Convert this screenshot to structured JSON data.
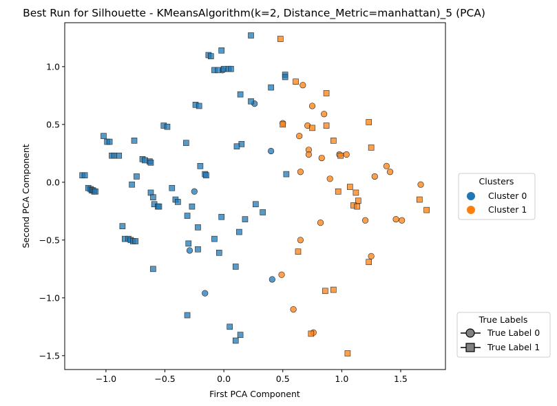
{
  "chart_data": {
    "type": "scatter",
    "title": "Best Run for Silhouette - KMeansAlgorithm(k=2, Distance_Metric=manhattan)_5 (PCA)",
    "xlabel": "First PCA Component",
    "ylabel": "Second PCA Component",
    "xlim": [
      -1.35,
      1.88
    ],
    "ylim": [
      -1.62,
      1.38
    ],
    "xticks": [
      -1.0,
      -0.5,
      0.0,
      0.5,
      1.0,
      1.5
    ],
    "xtick_labels": [
      "−1.0",
      "−0.5",
      "0.0",
      "0.5",
      "1.0",
      "1.5"
    ],
    "yticks": [
      -1.5,
      -1.0,
      -0.5,
      0.0,
      0.5,
      1.0
    ],
    "ytick_labels": [
      "−1.5",
      "−1.0",
      "−0.5",
      "0.0",
      "0.5",
      "1.0"
    ],
    "grid": false,
    "cluster_colors": [
      "#1f77b4",
      "#ff7f0e"
    ],
    "series": [
      {
        "name": "Cluster 0 / True Label 0",
        "cluster": 0,
        "true_label": 0,
        "marker": "circle",
        "points": [
          [
            -0.01,
            0.97
          ],
          [
            0.26,
            0.68
          ],
          [
            0.4,
            0.27
          ],
          [
            -0.25,
            -0.08
          ],
          [
            -0.29,
            -0.59
          ],
          [
            -0.16,
            -0.96
          ],
          [
            0.41,
            -0.84
          ]
        ]
      },
      {
        "name": "Cluster 0 / True Label 1",
        "cluster": 0,
        "true_label": 1,
        "marker": "square",
        "points": [
          [
            0.23,
            1.27
          ],
          [
            -0.02,
            1.14
          ],
          [
            -0.13,
            1.1
          ],
          [
            -0.11,
            1.09
          ],
          [
            -0.08,
            0.97
          ],
          [
            -0.05,
            0.97
          ],
          [
            0.0,
            0.98
          ],
          [
            0.04,
            0.98
          ],
          [
            0.06,
            0.98
          ],
          [
            0.52,
            0.93
          ],
          [
            0.52,
            0.91
          ],
          [
            0.4,
            0.82
          ],
          [
            0.14,
            0.76
          ],
          [
            0.23,
            0.7
          ],
          [
            -0.24,
            0.67
          ],
          [
            -0.21,
            0.66
          ],
          [
            -0.51,
            0.49
          ],
          [
            -0.48,
            0.48
          ],
          [
            -1.02,
            0.4
          ],
          [
            -0.99,
            0.35
          ],
          [
            -0.97,
            0.35
          ],
          [
            -0.76,
            0.36
          ],
          [
            -0.32,
            0.34
          ],
          [
            0.15,
            0.33
          ],
          [
            0.11,
            0.31
          ],
          [
            -0.95,
            0.23
          ],
          [
            -0.93,
            0.23
          ],
          [
            -0.89,
            0.23
          ],
          [
            -0.69,
            0.2
          ],
          [
            -0.67,
            0.19
          ],
          [
            -0.63,
            0.18
          ],
          [
            -0.62,
            0.17
          ],
          [
            -0.2,
            0.14
          ],
          [
            -0.16,
            0.07
          ],
          [
            -0.15,
            0.06
          ],
          [
            -1.2,
            0.06
          ],
          [
            -1.18,
            0.06
          ],
          [
            -0.74,
            0.05
          ],
          [
            0.53,
            0.07
          ],
          [
            -0.78,
            -0.02
          ],
          [
            -1.15,
            -0.05
          ],
          [
            -1.13,
            -0.06
          ],
          [
            -1.12,
            -0.07
          ],
          [
            -1.11,
            -0.07
          ],
          [
            -1.1,
            -0.08
          ],
          [
            -1.09,
            -0.08
          ],
          [
            -0.44,
            -0.05
          ],
          [
            -0.62,
            -0.09
          ],
          [
            -0.6,
            -0.13
          ],
          [
            -0.41,
            -0.15
          ],
          [
            -0.39,
            -0.17
          ],
          [
            -0.59,
            -0.19
          ],
          [
            -0.56,
            -0.21
          ],
          [
            -0.55,
            -0.21
          ],
          [
            -0.27,
            -0.21
          ],
          [
            0.27,
            -0.19
          ],
          [
            0.33,
            -0.26
          ],
          [
            -0.31,
            -0.29
          ],
          [
            -0.02,
            -0.3
          ],
          [
            0.18,
            -0.32
          ],
          [
            -0.86,
            -0.38
          ],
          [
            -0.22,
            -0.39
          ],
          [
            0.13,
            -0.43
          ],
          [
            -0.84,
            -0.49
          ],
          [
            -0.81,
            -0.49
          ],
          [
            -0.79,
            -0.5
          ],
          [
            -0.77,
            -0.51
          ],
          [
            -0.75,
            -0.51
          ],
          [
            -0.08,
            -0.49
          ],
          [
            -0.3,
            -0.53
          ],
          [
            -0.22,
            -0.58
          ],
          [
            -0.04,
            -0.61
          ],
          [
            -0.6,
            -0.75
          ],
          [
            0.1,
            -0.73
          ],
          [
            -0.31,
            -1.15
          ],
          [
            0.05,
            -1.25
          ],
          [
            0.14,
            -1.32
          ],
          [
            0.1,
            -1.37
          ]
        ]
      },
      {
        "name": "Cluster 1 / True Label 0",
        "cluster": 1,
        "true_label": 0,
        "marker": "circle",
        "points": [
          [
            0.67,
            0.84
          ],
          [
            0.75,
            0.66
          ],
          [
            0.85,
            0.59
          ],
          [
            0.5,
            0.51
          ],
          [
            0.71,
            0.49
          ],
          [
            0.64,
            0.4
          ],
          [
            0.72,
            0.28
          ],
          [
            0.72,
            0.24
          ],
          [
            0.83,
            0.21
          ],
          [
            0.98,
            0.24
          ],
          [
            1.04,
            0.24
          ],
          [
            1.38,
            0.14
          ],
          [
            1.41,
            0.09
          ],
          [
            1.28,
            0.05
          ],
          [
            0.65,
            0.09
          ],
          [
            0.9,
            0.03
          ],
          [
            1.67,
            -0.02
          ],
          [
            1.2,
            -0.33
          ],
          [
            0.82,
            -0.35
          ],
          [
            1.46,
            -0.32
          ],
          [
            1.51,
            -0.33
          ],
          [
            0.65,
            -0.5
          ],
          [
            1.25,
            -0.64
          ],
          [
            0.49,
            -0.8
          ],
          [
            0.59,
            -1.1
          ],
          [
            0.76,
            -1.3
          ]
        ]
      },
      {
        "name": "Cluster 1 / True Label 1",
        "cluster": 1,
        "true_label": 1,
        "marker": "square",
        "points": [
          [
            0.48,
            1.24
          ],
          [
            0.61,
            0.87
          ],
          [
            0.87,
            0.77
          ],
          [
            1.23,
            0.52
          ],
          [
            0.5,
            0.5
          ],
          [
            0.75,
            0.47
          ],
          [
            0.87,
            0.49
          ],
          [
            0.93,
            0.36
          ],
          [
            1.25,
            0.3
          ],
          [
            0.99,
            0.23
          ],
          [
            1.07,
            -0.04
          ],
          [
            1.66,
            -0.15
          ],
          [
            1.72,
            -0.24
          ],
          [
            0.97,
            -0.08
          ],
          [
            1.12,
            -0.09
          ],
          [
            1.14,
            -0.16
          ],
          [
            1.1,
            -0.2
          ],
          [
            1.13,
            -0.21
          ],
          [
            0.63,
            -0.6
          ],
          [
            1.23,
            -0.69
          ],
          [
            0.86,
            -0.94
          ],
          [
            0.93,
            -0.93
          ],
          [
            0.74,
            -1.31
          ],
          [
            1.05,
            -1.48
          ]
        ]
      }
    ],
    "legends": [
      {
        "title": "Clusters",
        "position": "center-right",
        "entries": [
          {
            "label": "Cluster 0",
            "marker": "circle",
            "color": "#1f77b4"
          },
          {
            "label": "Cluster 1",
            "marker": "circle",
            "color": "#ff7f0e"
          }
        ]
      },
      {
        "title": "True Labels",
        "position": "lower-right",
        "entries": [
          {
            "label": "True Label 0",
            "marker": "circle",
            "color": "#808080"
          },
          {
            "label": "True Label 1",
            "marker": "square",
            "color": "#808080"
          }
        ]
      }
    ]
  }
}
